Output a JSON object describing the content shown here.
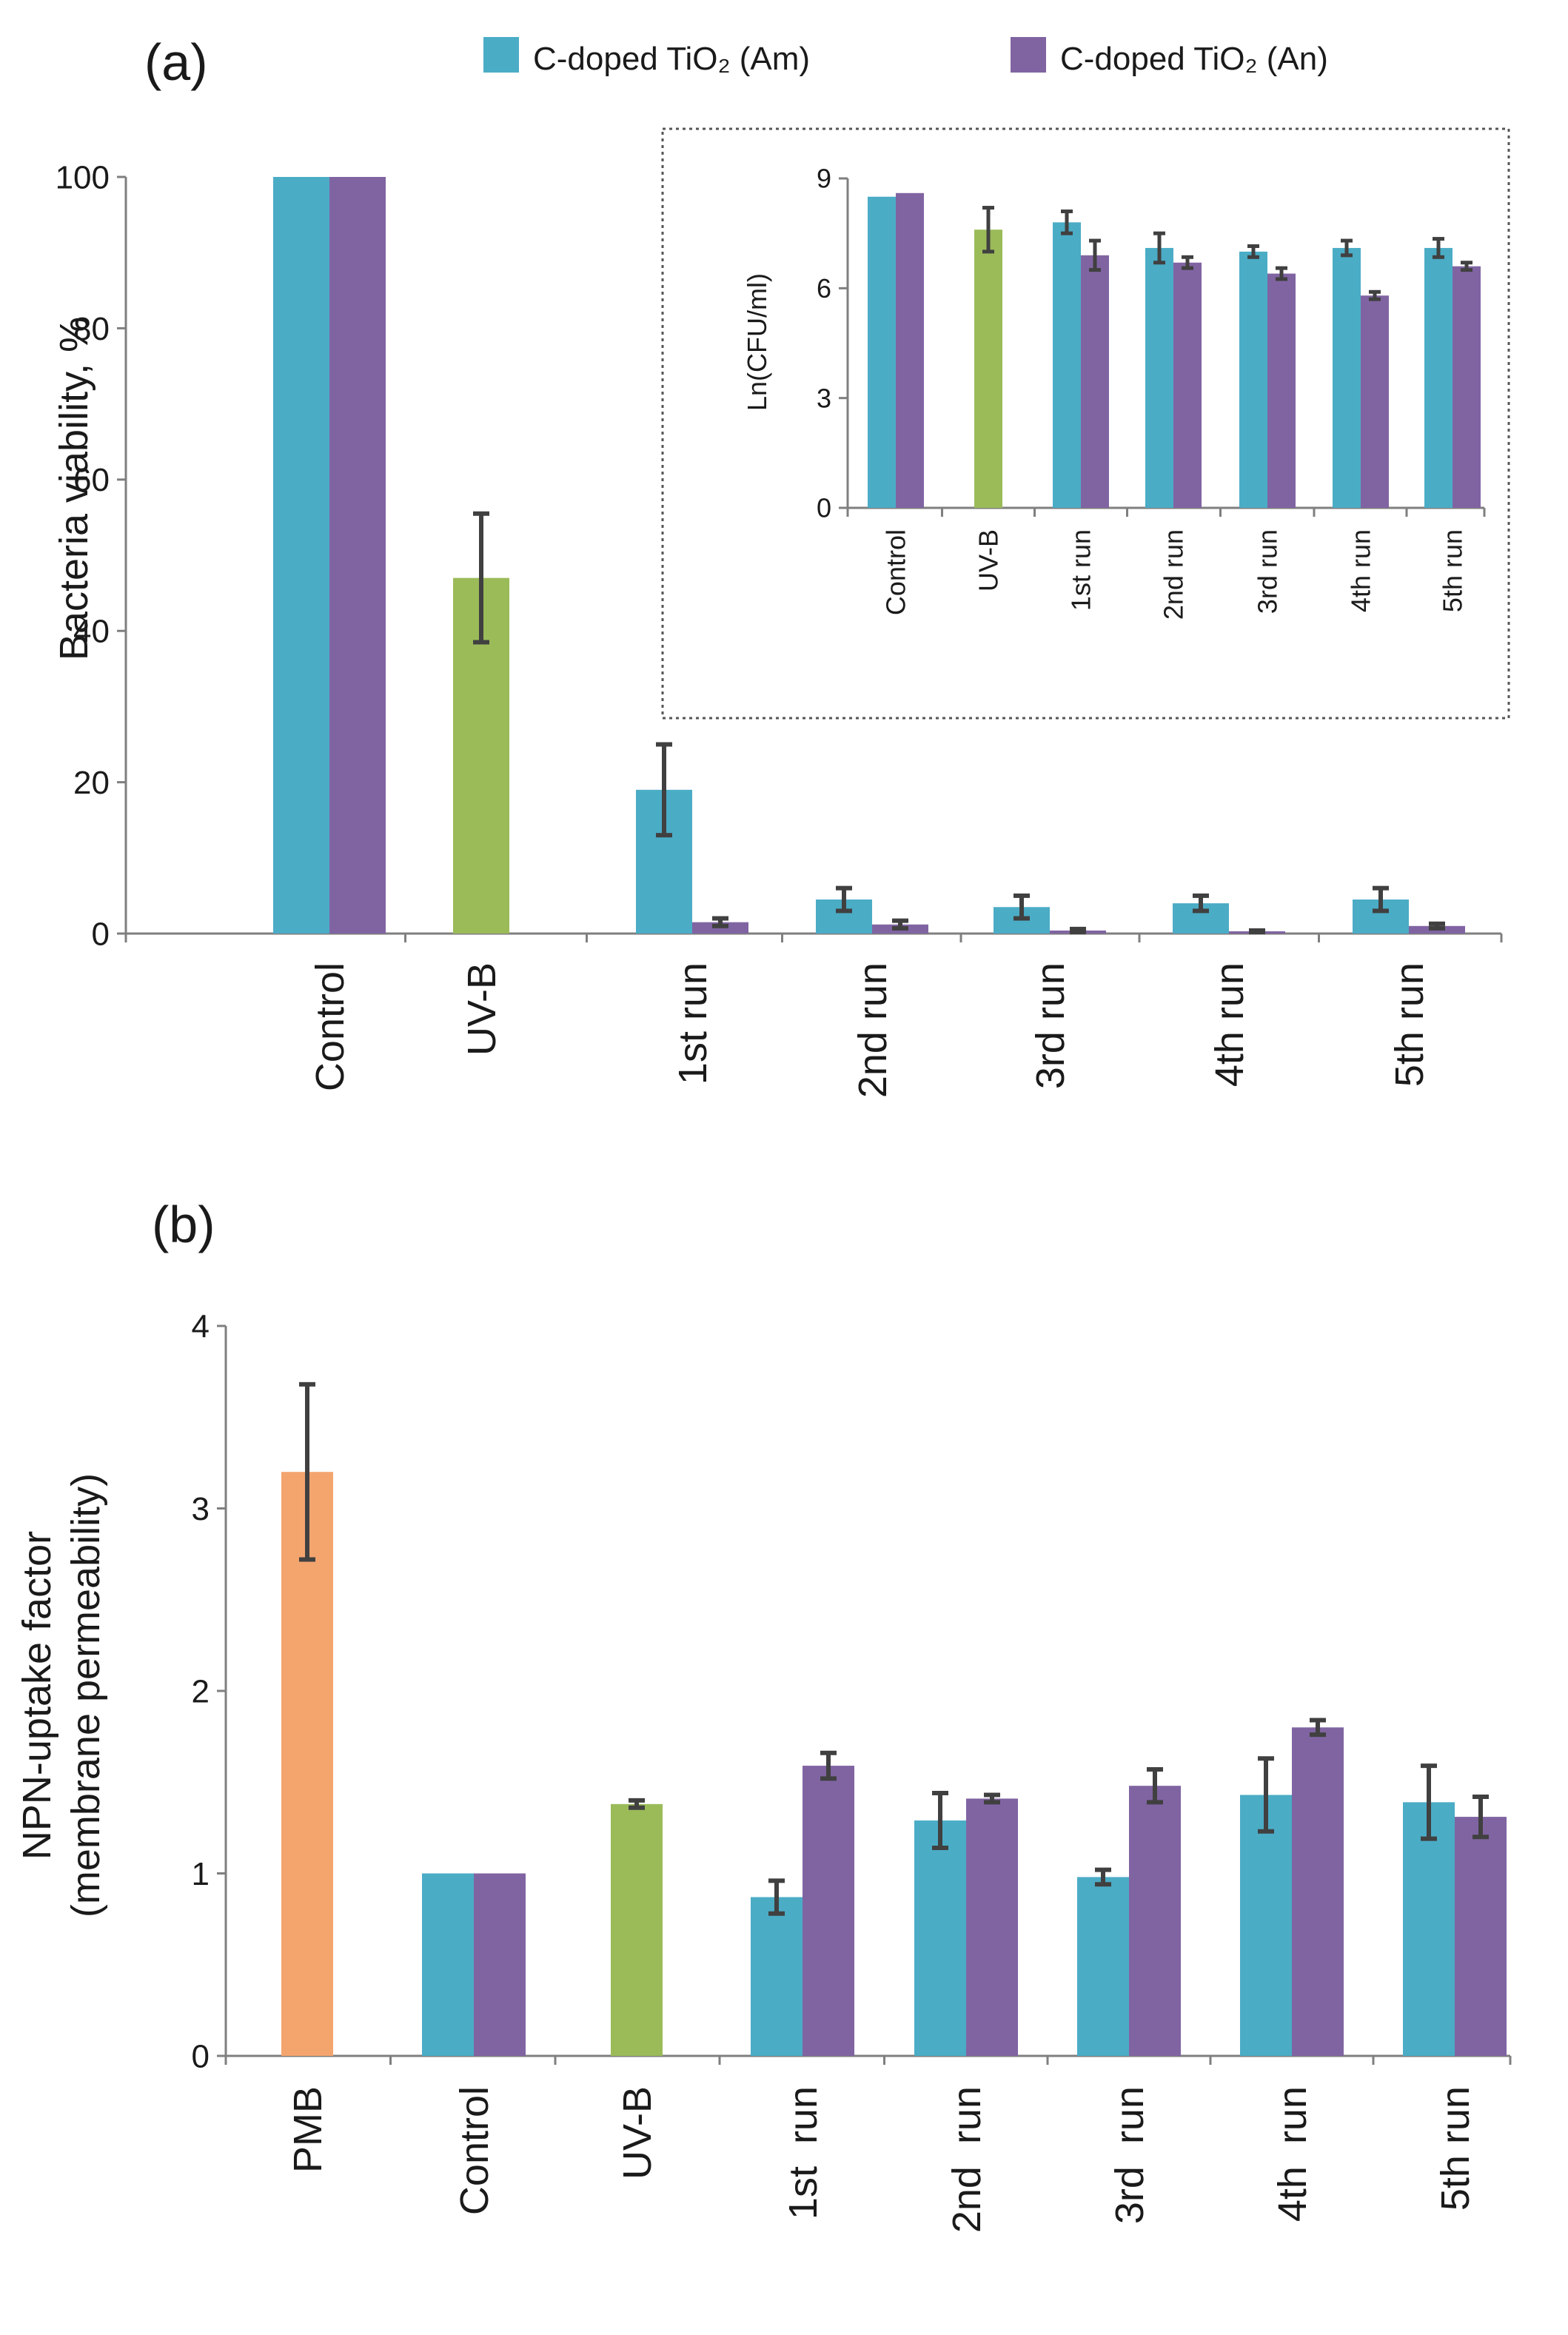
{
  "colors": {
    "am": "#4BACC6",
    "an": "#8064A2",
    "uvb": "#9BBB59",
    "pmb": "#F4A56E",
    "error": "#404040",
    "axis": "#7f7f7f"
  },
  "legend": {
    "am_label": "C-doped TiO₂ (Am)",
    "an_label": "C-doped TiO₂ (An)"
  },
  "chart_data": [
    {
      "id": "a-main",
      "panel_label": "(a)",
      "type": "bar",
      "ylabel": "Bacteria viability, %",
      "ylim": [
        0,
        100
      ],
      "yticks": [
        0,
        20,
        40,
        60,
        80,
        100
      ],
      "categories": [
        "Control",
        "UV-B",
        "1st run",
        "2nd run",
        "3rd run",
        "4th run",
        "5th run"
      ],
      "series": [
        {
          "name": "C-doped TiO2 (Am)",
          "color": "am",
          "values": [
            100,
            null,
            19,
            4.5,
            3.5,
            4,
            4.5
          ],
          "errors": [
            0,
            null,
            6,
            1.5,
            1.5,
            1,
            1.5
          ]
        },
        {
          "name": "C-doped TiO2 (An)",
          "color": "an",
          "values": [
            100,
            null,
            1.5,
            1.2,
            0.4,
            0.3,
            1.0
          ],
          "errors": [
            0,
            null,
            0.5,
            0.5,
            0.2,
            0.1,
            0.3
          ]
        },
        {
          "name": "UV-B",
          "color": "uvb",
          "values": [
            null,
            47,
            null,
            null,
            null,
            null,
            null
          ],
          "errors": [
            null,
            8.5,
            null,
            null,
            null,
            null,
            null
          ]
        }
      ]
    },
    {
      "id": "a-inset",
      "type": "bar",
      "ylabel": "Ln(CFU/ml)",
      "ylim": [
        0,
        9
      ],
      "yticks": [
        0,
        3,
        6,
        9
      ],
      "categories": [
        "Control",
        "UV-B",
        "1st run",
        "2nd run",
        "3rd run",
        "4th run",
        "5th run"
      ],
      "series": [
        {
          "name": "C-doped TiO2 (Am)",
          "color": "am",
          "values": [
            8.5,
            null,
            7.8,
            7.1,
            7.0,
            7.1,
            7.1
          ],
          "errors": [
            0,
            null,
            0.3,
            0.4,
            0.15,
            0.2,
            0.25
          ]
        },
        {
          "name": "C-doped TiO2 (An)",
          "color": "an",
          "values": [
            8.6,
            null,
            6.9,
            6.7,
            6.4,
            5.8,
            6.6
          ],
          "errors": [
            0,
            null,
            0.4,
            0.15,
            0.15,
            0.1,
            0.1
          ]
        },
        {
          "name": "UV-B",
          "color": "uvb",
          "values": [
            null,
            7.6,
            null,
            null,
            null,
            null,
            null
          ],
          "errors": [
            null,
            0.6,
            null,
            null,
            null,
            null,
            null
          ]
        }
      ]
    },
    {
      "id": "b-main",
      "panel_label": "(b)",
      "type": "bar",
      "ylabel_line1": "NPN-uptake factor",
      "ylabel_line2": "(membrane permeability)",
      "ylim": [
        0,
        4
      ],
      "yticks": [
        0,
        1,
        2,
        3,
        4
      ],
      "categories": [
        "PMB",
        "Control",
        "UV-B",
        "1st  run",
        "2nd  run",
        "3rd  run",
        "4th  run",
        "5th run"
      ],
      "series": [
        {
          "name": "PMB",
          "color": "pmb",
          "values": [
            3.2,
            null,
            null,
            null,
            null,
            null,
            null,
            null
          ],
          "errors": [
            0.48,
            null,
            null,
            null,
            null,
            null,
            null,
            null
          ]
        },
        {
          "name": "C-doped TiO2 (Am)",
          "color": "am",
          "values": [
            null,
            1.0,
            null,
            0.87,
            1.29,
            0.98,
            1.43,
            1.39
          ],
          "errors": [
            null,
            0,
            null,
            0.09,
            0.15,
            0.04,
            0.2,
            0.2
          ]
        },
        {
          "name": "C-doped TiO2 (An)",
          "color": "an",
          "values": [
            null,
            1.0,
            null,
            1.59,
            1.41,
            1.48,
            1.8,
            1.31
          ],
          "errors": [
            null,
            0,
            null,
            0.07,
            0.02,
            0.09,
            0.04,
            0.11
          ]
        },
        {
          "name": "UV-B",
          "color": "uvb",
          "values": [
            null,
            null,
            1.38,
            null,
            null,
            null,
            null,
            null
          ],
          "errors": [
            null,
            null,
            0.02,
            null,
            null,
            null,
            null,
            null
          ]
        }
      ]
    }
  ]
}
